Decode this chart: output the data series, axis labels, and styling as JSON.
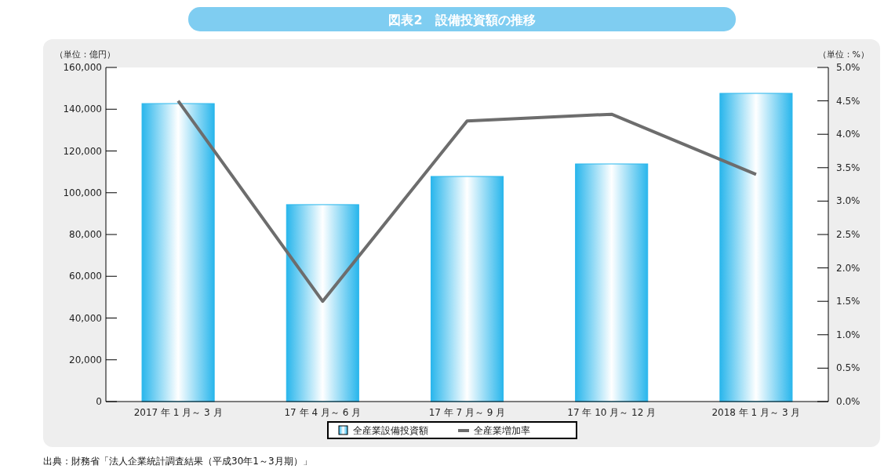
{
  "chart_data": {
    "type": "bar",
    "title": "図表2　設備投資額の推移",
    "categories": [
      "2017 年 1 月～ 3 月",
      "17 年 4 月～ 6 月",
      "17 年 7 月～ 9 月",
      "17 年 10 月～ 12 月",
      "2018 年 1 月～ 3 月"
    ],
    "series": [
      {
        "name": "全産業設備投資額",
        "color": "#29b6ec",
        "values": [
          142700,
          94300,
          107800,
          113800,
          147600
        ]
      },
      {
        "name": "全産業増加率",
        "type": "line",
        "axis": "y2",
        "color": "#6d6d6d",
        "values": [
          4.5,
          1.5,
          4.2,
          4.3,
          3.4
        ]
      }
    ],
    "ylabel": "（単位：億円）",
    "y2label": "（単位：%）",
    "ylim": [
      0,
      160000
    ],
    "yticks": [
      0,
      {
        "value": 20000,
        "label": "20,000"
      },
      {
        "value": 40000,
        "label": "40,000"
      },
      {
        "value": 60000,
        "label": "60,000"
      },
      {
        "value": 80000,
        "label": "80,000"
      },
      {
        "value": 100000,
        "label": "100,000"
      },
      {
        "value": 120000,
        "label": "120,000"
      },
      {
        "value": 140000,
        "label": "140,000"
      },
      {
        "value": 160000,
        "label": "160,000"
      }
    ],
    "y2lim": [
      0,
      5
    ],
    "y2ticks": [
      {
        "value": 0,
        "label": "0.0%"
      },
      {
        "value": 0.5,
        "label": "0.5%"
      },
      {
        "value": 1,
        "label": "1.0%"
      },
      {
        "value": 1.5,
        "label": "1.5%"
      },
      {
        "value": 2,
        "label": "2.0%"
      },
      {
        "value": 2.5,
        "label": "2.5%"
      },
      {
        "value": 3,
        "label": "3.0%"
      },
      {
        "value": 3.5,
        "label": "3.5%"
      },
      {
        "value": 4,
        "label": "4.0%"
      },
      {
        "value": 4.5,
        "label": "4.5%"
      },
      {
        "value": 5,
        "label": "5.0%"
      }
    ],
    "grid": false,
    "legend": "bottom",
    "marker": "none",
    "line_style": "solid",
    "annotations": [
      "出典：財務省「法人企業統計調査結果（平成30年1～3月期）」"
    ]
  }
}
